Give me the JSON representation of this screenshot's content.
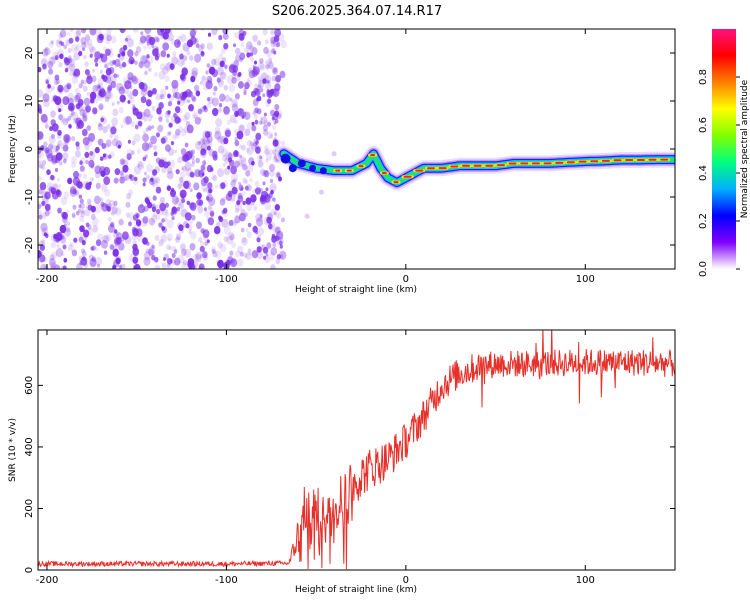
{
  "title": "S206.2025.364.07.14.R17",
  "colors": {
    "snr_line": "#e8302a",
    "axis": "#000000",
    "speckle": "#7a2ee8",
    "colormap": [
      "#ffffff",
      "#7f00ff",
      "#0000ff",
      "#00b0ff",
      "#00ff80",
      "#80ff00",
      "#ffff00",
      "#ff8000",
      "#ff0000",
      "#ff1080"
    ]
  },
  "chart_data": [
    {
      "type": "heatmap",
      "xlabel": "Height of straight line (km)",
      "ylabel": "Frequency (Hz)",
      "xlim": [
        -205,
        150
      ],
      "ylim": [
        -25,
        25
      ],
      "xticks": [
        -200,
        -100,
        0,
        100
      ],
      "yticks": [
        -20,
        -10,
        0,
        10,
        20
      ],
      "noise_region_x": [
        -205,
        -68
      ],
      "ridge": {
        "x": [
          -68,
          -60,
          -50,
          -40,
          -30,
          -22,
          -18,
          -14,
          -10,
          -5,
          0,
          5,
          10,
          20,
          30,
          40,
          50,
          60,
          70,
          80,
          90,
          100,
          110,
          120,
          130,
          140,
          150
        ],
        "frequency": [
          -1,
          -3,
          -4,
          -4.5,
          -4.5,
          -3,
          -1,
          -4,
          -6,
          -7,
          -6,
          -5,
          -4,
          -4,
          -3.5,
          -3.5,
          -3.5,
          -3,
          -3,
          -3,
          -2.8,
          -2.6,
          -2.5,
          -2.3,
          -2.3,
          -2.2,
          -2.2
        ]
      },
      "colorbar": {
        "label": "Normalized spectral amplitude",
        "ticks": [
          "0.0",
          "0.2",
          "0.4",
          "0.6",
          "0.8"
        ],
        "range": [
          0,
          1
        ]
      }
    },
    {
      "type": "line",
      "xlabel": "Height of straight line (km)",
      "ylabel": "SNR (10 * v/v)",
      "xlim": [
        -205,
        150
      ],
      "ylim": [
        0,
        780
      ],
      "xticks": [
        -200,
        -100,
        0,
        100
      ],
      "yticks": [
        0,
        200,
        400,
        600
      ],
      "trend": {
        "x": [
          -205,
          -150,
          -100,
          -65,
          -58,
          -55,
          -50,
          -40,
          -30,
          -20,
          -10,
          0,
          10,
          20,
          30,
          40,
          50,
          70,
          100,
          130,
          150
        ],
        "snr": [
          20,
          20,
          20,
          22,
          150,
          220,
          180,
          220,
          280,
          330,
          360,
          420,
          500,
          600,
          640,
          660,
          670,
          670,
          675,
          675,
          670
        ]
      },
      "noise_amplitude": {
        "x": [
          -205,
          -65,
          -58,
          -40,
          -20,
          0,
          20,
          50,
          100,
          150
        ],
        "amp": [
          8,
          8,
          90,
          80,
          70,
          60,
          55,
          45,
          45,
          45
        ]
      }
    }
  ]
}
